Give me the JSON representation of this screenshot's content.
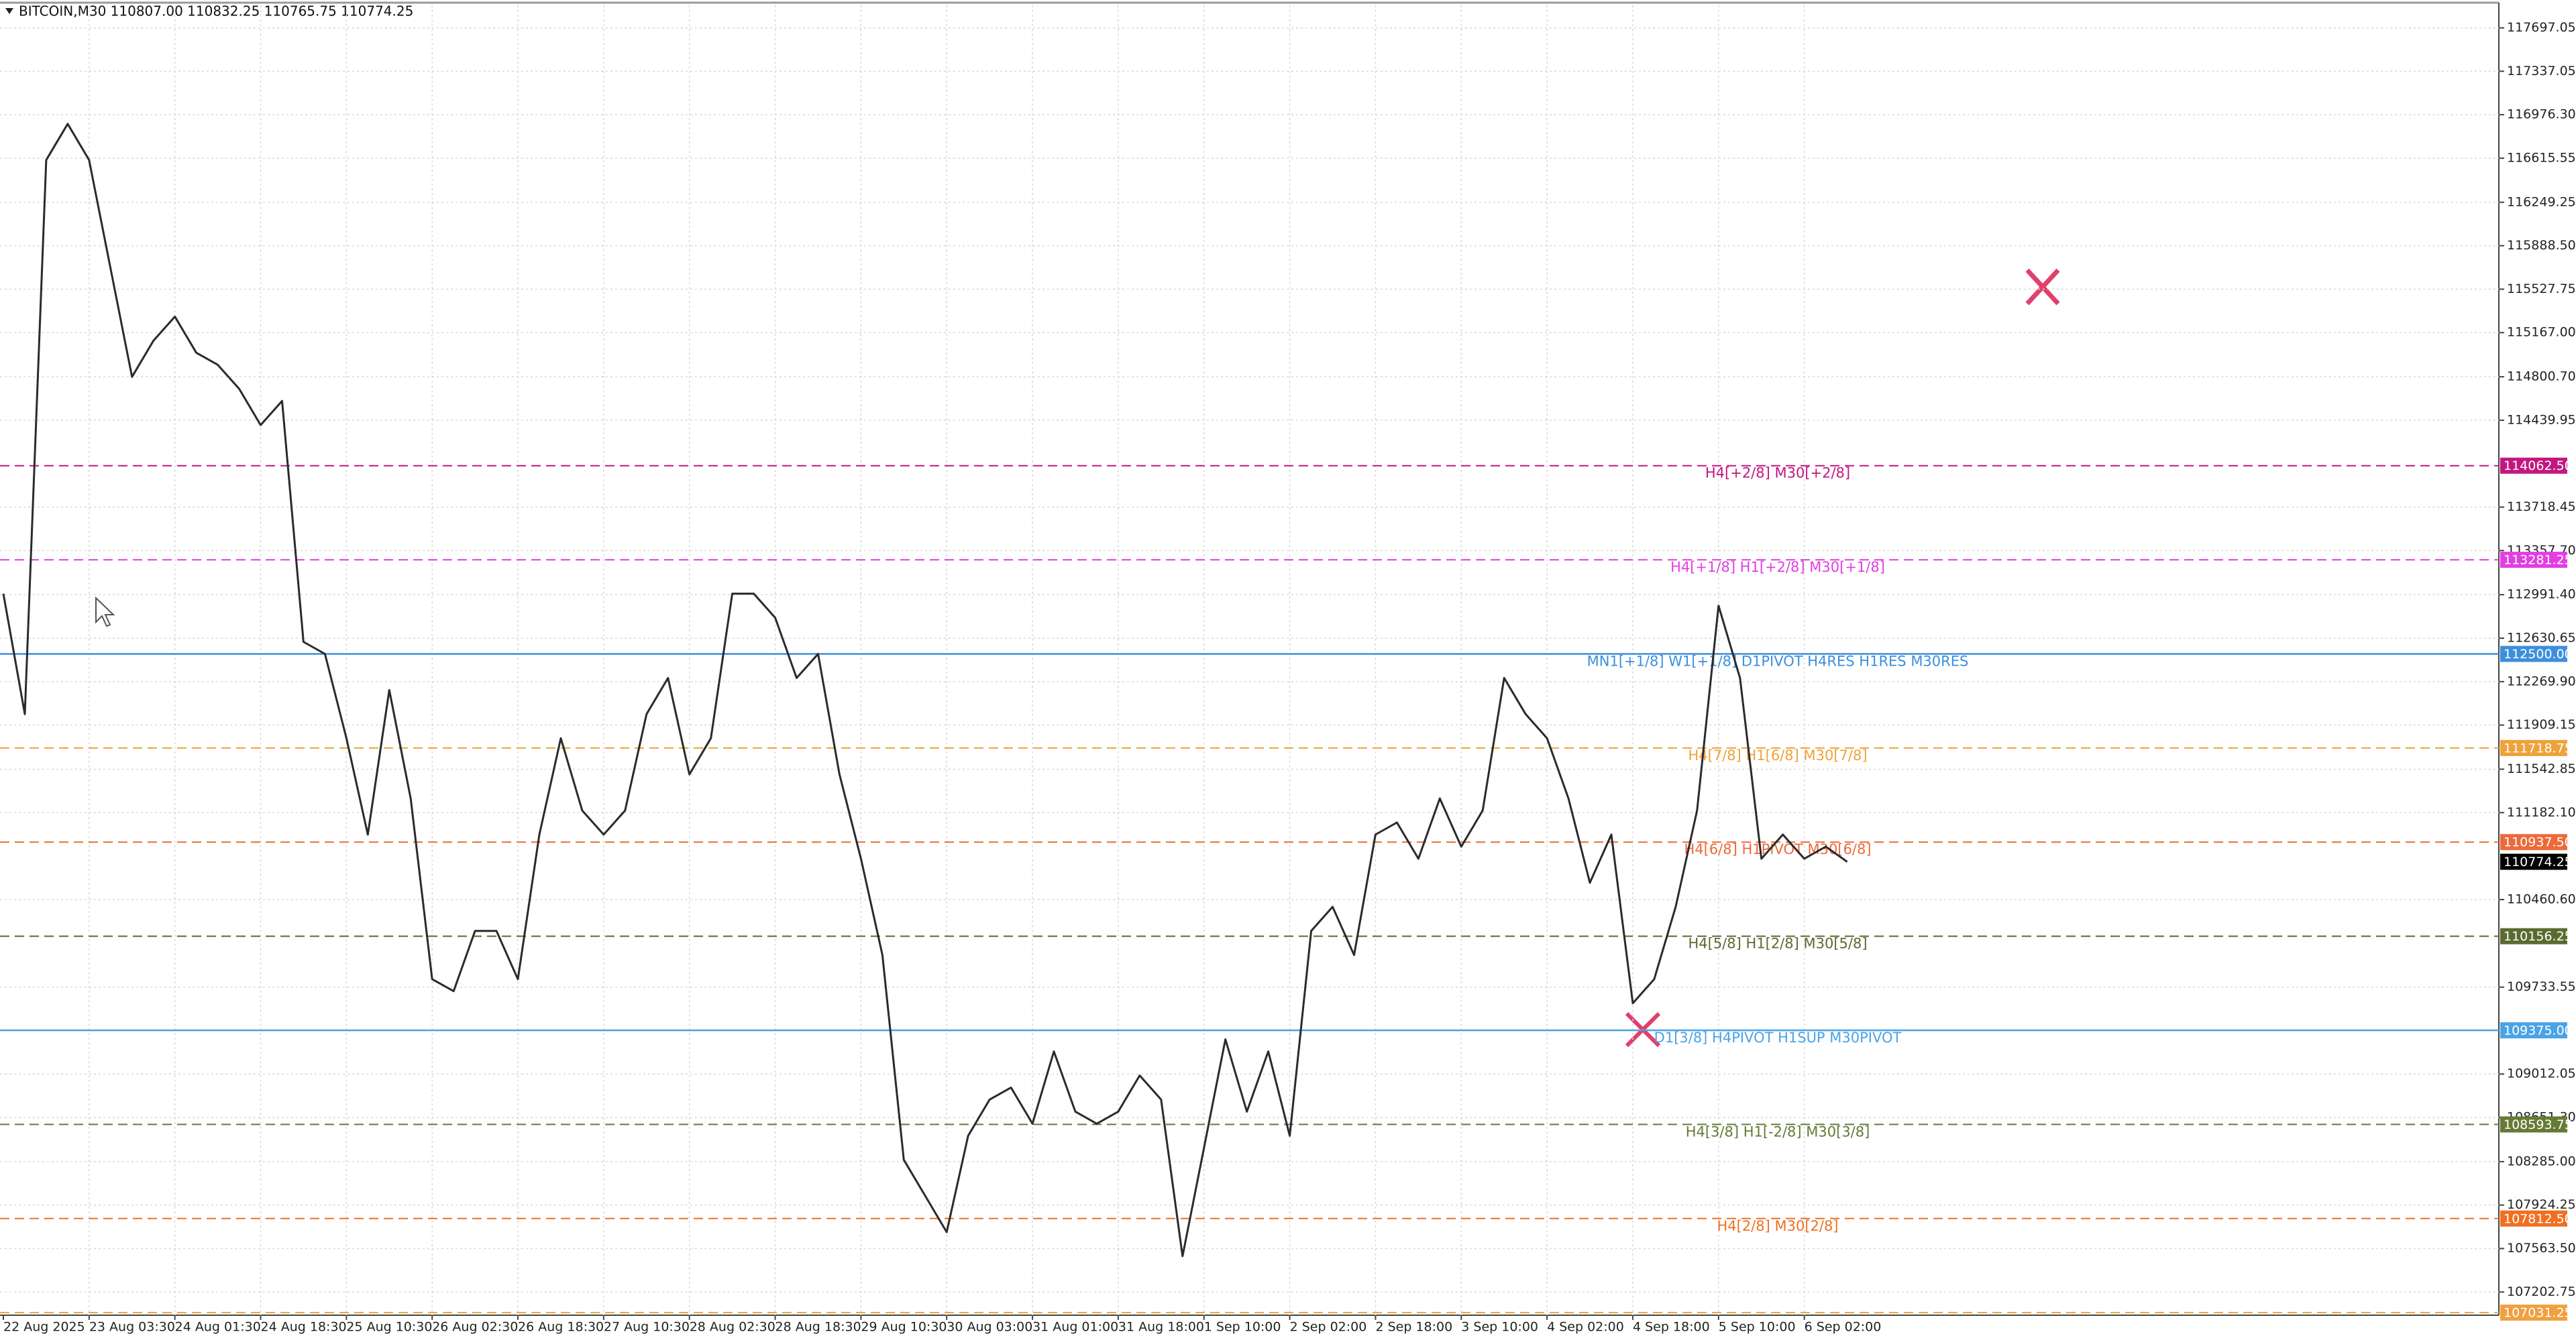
{
  "chart_data": {
    "type": "line",
    "title": "BITCOIN,M30  110807.00 110832.25 110765.75 110774.25",
    "color": "#2b2b2b",
    "grid": true,
    "categories": [
      "22 Aug 2025",
      null,
      null,
      null,
      "23 Aug 03:30",
      null,
      null,
      null,
      "24 Aug 01:30",
      null,
      null,
      null,
      "24 Aug 18:30",
      null,
      null,
      null,
      "25 Aug 10:30",
      null,
      null,
      null,
      "26 Aug 02:30",
      null,
      null,
      null,
      "26 Aug 18:30",
      null,
      null,
      null,
      "27 Aug 10:30",
      null,
      null,
      null,
      "28 Aug 02:30",
      null,
      null,
      null,
      "28 Aug 18:30",
      null,
      null,
      null,
      "29 Aug 10:30",
      null,
      null,
      null,
      "30 Aug 03:00",
      null,
      null,
      null,
      "31 Aug 01:00",
      null,
      null,
      null,
      "31 Aug 18:00",
      null,
      null,
      null,
      "1 Sep 10:00",
      null,
      null,
      null,
      "2 Sep 02:00",
      null,
      null,
      null,
      "2 Sep 18:00",
      null,
      null,
      null,
      "3 Sep 10:00",
      null,
      null,
      null,
      "4 Sep 02:00",
      null,
      null,
      null,
      "4 Sep 18:00",
      null,
      null,
      null,
      "5 Sep 10:00",
      null,
      null,
      null,
      "6 Sep 02:00",
      null,
      null
    ],
    "values": [
      113000,
      112000,
      116600,
      116900,
      116600,
      115700,
      114800,
      115100,
      115300,
      115000,
      114900,
      114700,
      114400,
      114600,
      112600,
      112500,
      111800,
      111000,
      112200,
      111300,
      109800,
      109700,
      110200,
      110200,
      109800,
      111000,
      111800,
      111200,
      111000,
      111200,
      112000,
      112300,
      111500,
      111800,
      113000,
      113000,
      112800,
      112300,
      112500,
      111500,
      110800,
      110000,
      108300,
      108000,
      107700,
      108500,
      108800,
      108900,
      108600,
      109200,
      108700,
      108600,
      108700,
      109000,
      108800,
      107500,
      108400,
      109300,
      108700,
      109200,
      108500,
      110200,
      110400,
      110000,
      111000,
      111100,
      110800,
      111300,
      110900,
      111200,
      112300,
      112000,
      111800,
      111300,
      110600,
      111000,
      109600,
      109800,
      110400,
      111200,
      112900,
      112300,
      110800,
      111000,
      110800,
      110900,
      110774.25
    ],
    "ylim": [
      107010,
      117884
    ],
    "yticks": [
      {
        "value": 117697.05,
        "label": "117697.05"
      },
      {
        "value": 117337.05,
        "label": "117337.05"
      },
      {
        "value": 116976.3,
        "label": "116976.30"
      },
      {
        "value": 116615.55,
        "label": "116615.55"
      },
      {
        "value": 116249.25,
        "label": "116249.25"
      },
      {
        "value": 115888.5,
        "label": "115888.50"
      },
      {
        "value": 115527.75,
        "label": "115527.75"
      },
      {
        "value": 115167,
        "label": "115167.00"
      },
      {
        "value": 114800.7,
        "label": "114800.70"
      },
      {
        "value": 114439.95,
        "label": "114439.95"
      },
      {
        "value": 113718.45,
        "label": "113718.45"
      },
      {
        "value": 113357.7,
        "label": "113357.70"
      },
      {
        "value": 112991.4,
        "label": "112991.40"
      },
      {
        "value": 112630.65,
        "label": "112630.65"
      },
      {
        "value": 112269.9,
        "label": "112269.90"
      },
      {
        "value": 111909.15,
        "label": "111909.15"
      },
      {
        "value": 111542.85,
        "label": "111542.85"
      },
      {
        "value": 111182.1,
        "label": "111182.10"
      },
      {
        "value": 110460.6,
        "label": "110460.60"
      },
      {
        "value": 109733.55,
        "label": "109733.55"
      },
      {
        "value": 109012.05,
        "label": "109012.05"
      },
      {
        "value": 108651.3,
        "label": "108651.30"
      },
      {
        "value": 108285,
        "label": "108285.00"
      },
      {
        "value": 107924.25,
        "label": "107924.25"
      },
      {
        "value": 107563.5,
        "label": "107563.50"
      },
      {
        "value": 107202.75,
        "label": "107202.75"
      }
    ],
    "levels": [
      {
        "value": 114062.5,
        "label": "114062.50",
        "text": "H4[+2/8] M30[+2/8]",
        "color": "#c2177f",
        "style": "dash"
      },
      {
        "value": 113281.25,
        "label": "113281.25",
        "text": "H4[+1/8] H1[+2/8] M30[+1/8]",
        "color": "#e23ee2",
        "style": "dash"
      },
      {
        "value": 112500,
        "label": "112500.00",
        "text": "MN1[+1/8] W1[+1/8] D1PIVOT H4RES H1RES M30RES",
        "color": "#3d8fdc",
        "style": "solid"
      },
      {
        "value": 111718.75,
        "label": "111718.75",
        "text": "H4[7/8] H1[6/8] M30[7/8]",
        "color": "#eea23a",
        "style": "dash"
      },
      {
        "value": 110937.5,
        "label": "110937.50",
        "text": "H4[6/8] H1PIVOT M30[6/8]",
        "color": "#ec6a3a",
        "style": "dash"
      },
      {
        "value": 110774.25,
        "label": "110774.25",
        "color": "#000000",
        "style": "none"
      },
      {
        "value": 110156.25,
        "label": "110156.25",
        "text": "H4[5/8] H1[2/8] M30[5/8]",
        "color": "#5a6b30",
        "style": "dash"
      },
      {
        "value": 109375,
        "label": "109375.00",
        "text": "D1[3/8] H4PIVOT H1SUP M30PIVOT",
        "color": "#4aa3e8",
        "style": "solid"
      },
      {
        "value": 108593.75,
        "label": "108593.75",
        "text": "H4[3/8] H1[-2/8] M30[3/8]",
        "color": "#667a35",
        "style": "dash"
      },
      {
        "value": 107812.5,
        "label": "107812.50",
        "text": "H4[2/8] M30[2/8]",
        "color": "#f07020",
        "style": "dash"
      },
      {
        "value": 107031.25,
        "label": "107031.25",
        "color": "#f0a040",
        "style": "dash"
      }
    ]
  }
}
